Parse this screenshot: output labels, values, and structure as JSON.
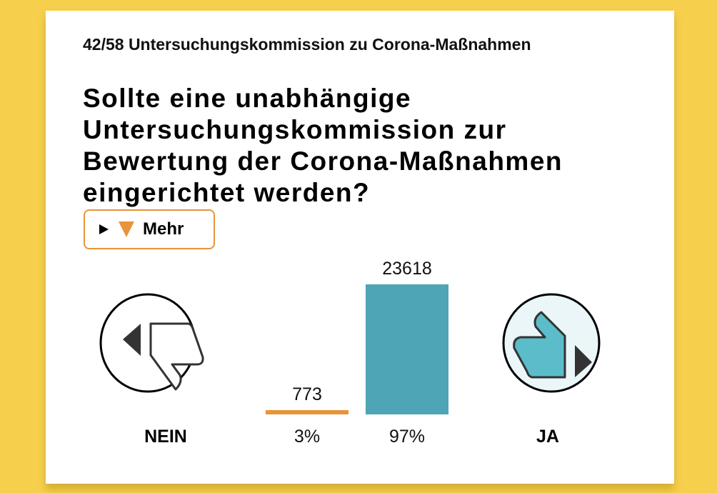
{
  "subtitle": "42/58 Untersuchungskommission zu Corona-Maßnahmen",
  "question": "Sollte eine unabhängige Untersuchungskommission zur Bewertung der Corona-Maßnahmen eingerichtet werden?",
  "more_label": "Mehr",
  "no": {
    "label": "NEIN",
    "count": "773",
    "percent": "3%",
    "value": 773,
    "color": "#e8943a"
  },
  "yes": {
    "label": "JA",
    "count": "23618",
    "percent": "97%",
    "value": 23618,
    "color": "#4da5b5"
  }
}
